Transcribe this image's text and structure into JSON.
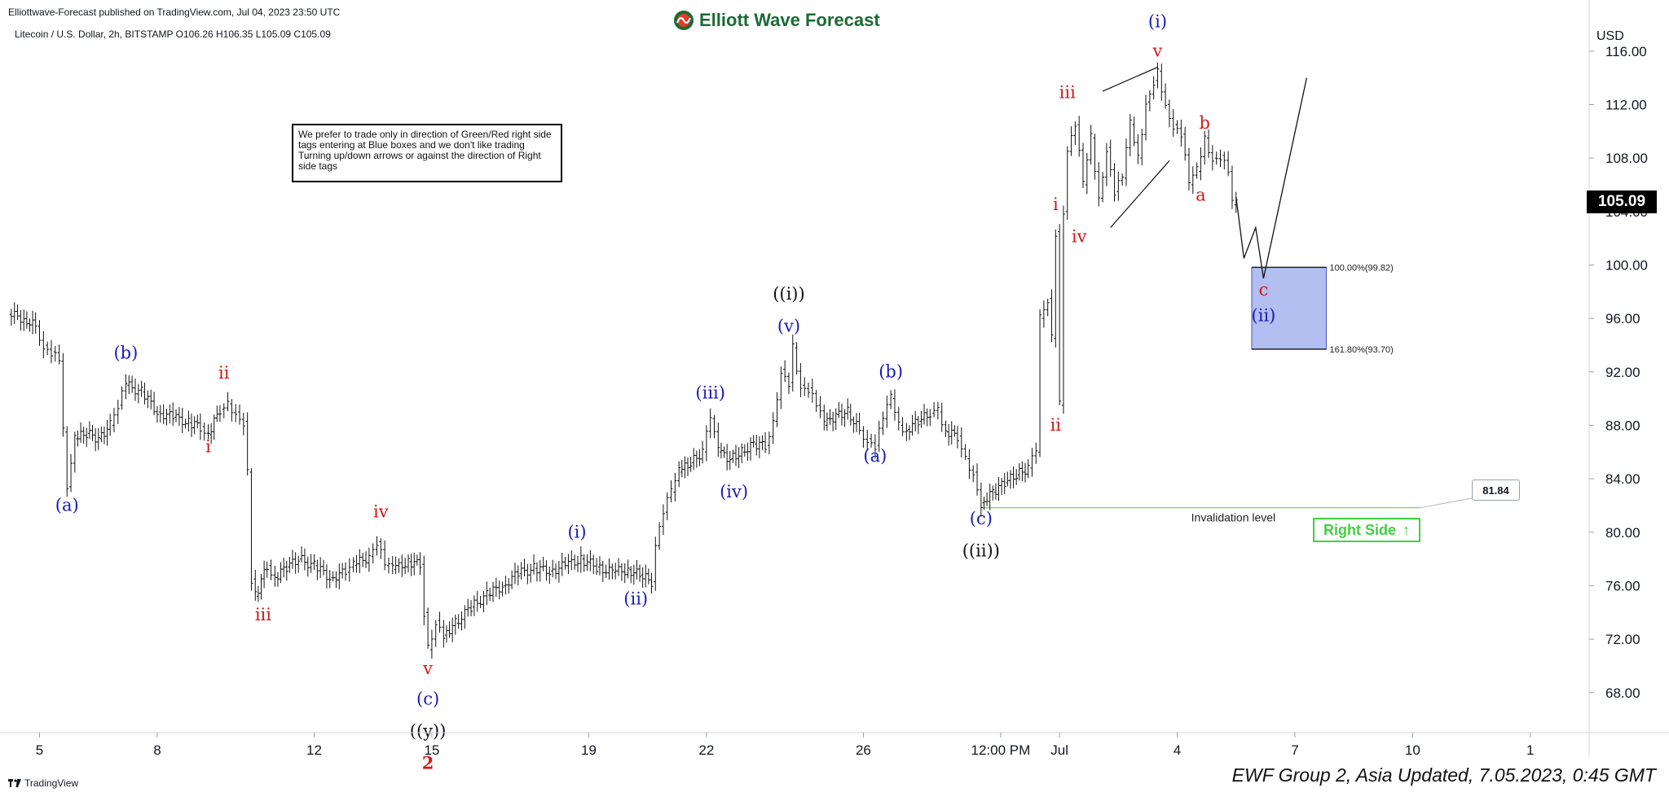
{
  "header": {
    "published": "Elliottwave-Forecast published on TradingView.com, Jul 04, 2023 23:50 UTC",
    "symbol_line": "Litecoin / U.S. Dollar, 2h, BITSTAMP  O106.26  H106.35  L105.09  C105.09",
    "logo_text": "Elliott Wave Forecast"
  },
  "note": "We prefer to trade only in direction of Green/Red right side tags entering at Blue boxes and we don't like trading Turning up/down arrows or against the direction of Right side tags",
  "footer": {
    "brand": "TradingView",
    "updated": "EWF Group 2, Asia Updated, 7.05.2023, 0:45 GMT"
  },
  "colors": {
    "blue_label": "#1a1ab8",
    "red_label": "#d01818",
    "black_label": "#111111",
    "green": "#3fd23f",
    "box_fill": "#b3bff0",
    "box_stroke": "#4a55c8"
  },
  "chart_data": {
    "type": "ohlc",
    "symbol": "Litecoin / U.S. Dollar",
    "interval": "2h",
    "currency": "USD",
    "last_price": "105.09",
    "y_ticks": [
      68,
      72,
      76,
      80,
      84,
      88,
      92,
      96,
      100,
      104,
      108,
      112,
      116
    ],
    "y_tick_labels": [
      "68.00",
      "72.00",
      "76.00",
      "80.00",
      "84.00",
      "88.00",
      "92.00",
      "96.00",
      "100.00",
      "104.00",
      "108.00",
      "112.00",
      "116.00"
    ],
    "ylim": [
      65,
      118
    ],
    "x_ticks": [
      {
        "day": 5,
        "label": "5"
      },
      {
        "day": 8,
        "label": "8"
      },
      {
        "day": 12,
        "label": "12"
      },
      {
        "day": 15,
        "label": "15"
      },
      {
        "day": 19,
        "label": "19"
      },
      {
        "day": 22,
        "label": "22"
      },
      {
        "day": 26,
        "label": "26"
      },
      {
        "day": 29.5,
        "label": "12:00 PM"
      },
      {
        "day": 31,
        "label": "Jul"
      },
      {
        "day": 34,
        "label": "4"
      },
      {
        "day": 37,
        "label": "7"
      },
      {
        "day": 40,
        "label": "10"
      },
      {
        "day": 43,
        "label": "1"
      }
    ],
    "xlim": [
      4.2,
      44.5
    ],
    "price_path": [
      [
        4.2,
        96.3
      ],
      [
        4.6,
        96.0
      ],
      [
        4.9,
        95.4
      ],
      [
        5.1,
        94.0
      ],
      [
        5.3,
        93.5
      ],
      [
        5.5,
        92.8
      ],
      [
        5.6,
        87.5
      ],
      [
        5.7,
        83.4
      ],
      [
        5.9,
        87.0
      ],
      [
        6.2,
        87.4
      ],
      [
        6.5,
        87.0
      ],
      [
        6.8,
        88.0
      ],
      [
        7.0,
        89.5
      ],
      [
        7.2,
        91.0
      ],
      [
        7.6,
        90.5
      ],
      [
        8.0,
        89.0
      ],
      [
        8.4,
        88.6
      ],
      [
        8.8,
        88.2
      ],
      [
        9.1,
        87.9
      ],
      [
        9.3,
        87.3
      ],
      [
        9.6,
        89.2
      ],
      [
        9.8,
        89.6
      ],
      [
        10.0,
        89.0
      ],
      [
        10.2,
        88.3
      ],
      [
        10.3,
        84.5
      ],
      [
        10.4,
        76.5
      ],
      [
        10.5,
        75.2
      ],
      [
        10.8,
        77.5
      ],
      [
        11.0,
        76.6
      ],
      [
        11.3,
        77.4
      ],
      [
        11.6,
        78.0
      ],
      [
        12.0,
        77.5
      ],
      [
        12.4,
        76.6
      ],
      [
        12.8,
        77.0
      ],
      [
        13.0,
        77.5
      ],
      [
        13.4,
        78.2
      ],
      [
        13.6,
        79.3
      ],
      [
        13.8,
        77.5
      ],
      [
        14.0,
        77.2
      ],
      [
        14.4,
        77.8
      ],
      [
        14.7,
        77.6
      ],
      [
        14.8,
        74.0
      ],
      [
        14.9,
        71.2
      ],
      [
        15.1,
        73.4
      ],
      [
        15.3,
        72.3
      ],
      [
        15.6,
        73.2
      ],
      [
        16.0,
        74.4
      ],
      [
        16.4,
        75.3
      ],
      [
        16.8,
        76.0
      ],
      [
        17.2,
        76.9
      ],
      [
        17.6,
        77.3
      ],
      [
        18.0,
        77.1
      ],
      [
        18.4,
        77.5
      ],
      [
        18.8,
        78.0
      ],
      [
        19.2,
        77.4
      ],
      [
        19.6,
        77.0
      ],
      [
        20.0,
        77.2
      ],
      [
        20.3,
        76.8
      ],
      [
        20.6,
        76.3
      ],
      [
        20.7,
        79.0
      ],
      [
        20.9,
        81.5
      ],
      [
        21.1,
        83.0
      ],
      [
        21.3,
        84.5
      ],
      [
        21.6,
        85.2
      ],
      [
        21.9,
        86.0
      ],
      [
        22.1,
        88.5
      ],
      [
        22.3,
        86.0
      ],
      [
        22.6,
        85.5
      ],
      [
        22.9,
        86.0
      ],
      [
        23.2,
        86.6
      ],
      [
        23.5,
        86.5
      ],
      [
        23.7,
        88.3
      ],
      [
        23.9,
        92.2
      ],
      [
        24.1,
        91.2
      ],
      [
        24.2,
        93.8
      ],
      [
        24.4,
        91.0
      ],
      [
        24.6,
        90.8
      ],
      [
        24.8,
        89.5
      ],
      [
        25.0,
        88.0
      ],
      [
        25.3,
        88.8
      ],
      [
        25.6,
        89.0
      ],
      [
        25.9,
        87.6
      ],
      [
        26.1,
        87.0
      ],
      [
        26.3,
        86.5
      ],
      [
        26.5,
        88.5
      ],
      [
        26.7,
        90.0
      ],
      [
        26.9,
        88.0
      ],
      [
        27.1,
        87.7
      ],
      [
        27.4,
        88.3
      ],
      [
        27.7,
        88.9
      ],
      [
        27.9,
        89.0
      ],
      [
        28.1,
        87.5
      ],
      [
        28.4,
        87.2
      ],
      [
        28.6,
        85.5
      ],
      [
        28.8,
        84.5
      ],
      [
        29.0,
        82.2
      ],
      [
        29.3,
        83.0
      ],
      [
        29.6,
        83.7
      ],
      [
        29.9,
        84.3
      ],
      [
        30.2,
        84.8
      ],
      [
        30.4,
        86.0
      ],
      [
        30.5,
        96.0
      ],
      [
        30.7,
        97.5
      ],
      [
        30.8,
        94.5
      ],
      [
        30.9,
        102.5
      ],
      [
        31.0,
        89.5
      ],
      [
        31.1,
        104.0
      ],
      [
        31.2,
        108.5
      ],
      [
        31.4,
        110.5
      ],
      [
        31.6,
        106.0
      ],
      [
        31.8,
        109.5
      ],
      [
        32.0,
        105.0
      ],
      [
        32.2,
        108.8
      ],
      [
        32.4,
        105.5
      ],
      [
        32.6,
        106.5
      ],
      [
        32.8,
        110.5
      ],
      [
        33.0,
        108.0
      ],
      [
        33.2,
        112.2
      ],
      [
        33.4,
        113.8
      ],
      [
        33.5,
        114.5
      ],
      [
        33.7,
        112.0
      ],
      [
        33.9,
        110.5
      ],
      [
        34.1,
        109.8
      ],
      [
        34.3,
        106.0
      ],
      [
        34.5,
        107.0
      ],
      [
        34.7,
        109.5
      ],
      [
        34.9,
        108.0
      ],
      [
        35.1,
        108.2
      ],
      [
        35.3,
        107.0
      ],
      [
        35.4,
        104.5
      ],
      [
        35.5,
        105.1
      ]
    ],
    "projection_path": [
      [
        35.5,
        105.1
      ],
      [
        35.7,
        100.5
      ],
      [
        36.0,
        102.8
      ],
      [
        36.2,
        99.0
      ],
      [
        37.3,
        114.0
      ]
    ],
    "wedge_lines": [
      [
        [
          32.1,
          113.0
        ],
        [
          33.5,
          114.8
        ]
      ],
      [
        [
          32.3,
          102.8
        ],
        [
          33.8,
          107.8
        ]
      ]
    ],
    "blue_box": {
      "day_start": 35.9,
      "day_end": 37.8,
      "high": 99.82,
      "low": 93.7
    },
    "levels": [
      {
        "label": "100.00%(99.82)",
        "value": 99.82
      },
      {
        "label": "161.80%(93.70)",
        "value": 93.7
      }
    ],
    "invalidation": {
      "label": "Invalidation level",
      "value": 81.84,
      "value_label": "81.84",
      "day_start": 29.0,
      "day_end": 40.2
    },
    "right_side_tag": {
      "label": "Right Side",
      "arrow": "↑"
    },
    "annotations": [
      {
        "text": "(a)",
        "day": 5.7,
        "price": 81.6,
        "color": "blue"
      },
      {
        "text": "(b)",
        "day": 7.2,
        "price": 93.0,
        "color": "blue"
      },
      {
        "text": "ii",
        "day": 9.7,
        "price": 91.5,
        "color": "red"
      },
      {
        "text": "i",
        "day": 9.3,
        "price": 86.0,
        "color": "red"
      },
      {
        "text": "iii",
        "day": 10.7,
        "price": 73.4,
        "color": "red"
      },
      {
        "text": "iv",
        "day": 13.7,
        "price": 81.1,
        "color": "red"
      },
      {
        "text": "v",
        "day": 14.9,
        "price": 69.4,
        "color": "red"
      },
      {
        "text": "(c)",
        "day": 14.9,
        "price": 67.1,
        "color": "blue"
      },
      {
        "text": "((y))",
        "day": 14.9,
        "price": 64.7,
        "color": "black"
      },
      {
        "text": "2",
        "day": 14.9,
        "price": 62.3,
        "color": "red",
        "bold": true
      },
      {
        "text": "(i)",
        "day": 18.7,
        "price": 79.6,
        "color": "blue"
      },
      {
        "text": "(ii)",
        "day": 20.2,
        "price": 74.6,
        "color": "blue"
      },
      {
        "text": "(iii)",
        "day": 22.1,
        "price": 90.0,
        "color": "blue"
      },
      {
        "text": "(iv)",
        "day": 22.7,
        "price": 82.6,
        "color": "blue"
      },
      {
        "text": "((i))",
        "day": 24.1,
        "price": 97.4,
        "color": "black"
      },
      {
        "text": "(v)",
        "day": 24.1,
        "price": 95.0,
        "color": "blue"
      },
      {
        "text": "(b)",
        "day": 26.7,
        "price": 91.6,
        "color": "blue"
      },
      {
        "text": "(a)",
        "day": 26.3,
        "price": 85.3,
        "color": "blue"
      },
      {
        "text": "(c)",
        "day": 29.0,
        "price": 80.6,
        "color": "blue"
      },
      {
        "text": "((ii))",
        "day": 29.0,
        "price": 78.2,
        "color": "black"
      },
      {
        "text": "ii",
        "day": 30.9,
        "price": 87.6,
        "color": "red"
      },
      {
        "text": "i",
        "day": 30.9,
        "price": 104.1,
        "color": "red"
      },
      {
        "text": "iv",
        "day": 31.5,
        "price": 101.7,
        "color": "red"
      },
      {
        "text": "iii",
        "day": 31.2,
        "price": 112.5,
        "color": "red"
      },
      {
        "text": "v",
        "day": 33.5,
        "price": 115.6,
        "color": "red"
      },
      {
        "text": "(i)",
        "day": 33.5,
        "price": 117.8,
        "color": "blue"
      },
      {
        "text": "b",
        "day": 34.7,
        "price": 110.2,
        "color": "red"
      },
      {
        "text": "a",
        "day": 34.6,
        "price": 104.8,
        "color": "red"
      },
      {
        "text": "c",
        "day": 36.2,
        "price": 97.7,
        "color": "red"
      },
      {
        "text": "(ii)",
        "day": 36.2,
        "price": 95.8,
        "color": "blue"
      }
    ]
  }
}
